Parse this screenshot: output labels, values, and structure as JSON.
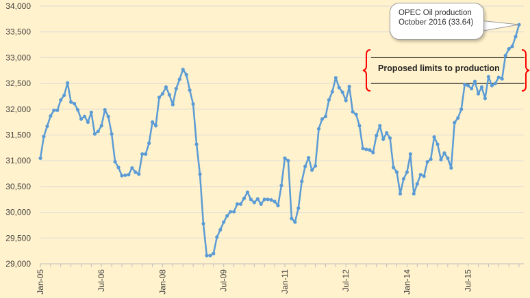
{
  "chart_data": {
    "type": "line",
    "title": "",
    "xlabel": "",
    "ylabel": "",
    "ylim": [
      29000,
      34000
    ],
    "yticks": [
      29000,
      29500,
      30000,
      30500,
      31000,
      31500,
      32000,
      32500,
      33000,
      33500,
      34000
    ],
    "ytick_labels": [
      "29,000",
      "29,500",
      "30,000",
      "30,500",
      "31,000",
      "31,500",
      "32,000",
      "32,500",
      "33,000",
      "33,500",
      "34,000"
    ],
    "grid": true,
    "start": "Jan-05",
    "xtick_labels": [
      {
        "label": "Jan-05",
        "index": 0
      },
      {
        "label": "Jul-06",
        "index": 18
      },
      {
        "label": "Jan-08",
        "index": 36
      },
      {
        "label": "Jul-09",
        "index": 54
      },
      {
        "label": "Jan-11",
        "index": 72
      },
      {
        "label": "Jul-12",
        "index": 90
      },
      {
        "label": "Jan-14",
        "index": 108
      },
      {
        "label": "Jul-15",
        "index": 126
      }
    ],
    "series": [
      {
        "name": "OPEC Oil production",
        "color": "#5B9BD5",
        "values": [
          31050,
          31470,
          31670,
          31870,
          31980,
          31980,
          32180,
          32270,
          32510,
          32140,
          32110,
          31990,
          31810,
          31860,
          31750,
          31940,
          31520,
          31570,
          31680,
          31990,
          31860,
          31520,
          30980,
          30870,
          30710,
          30720,
          30730,
          30860,
          30780,
          30740,
          31130,
          31130,
          31340,
          31750,
          31680,
          32230,
          32300,
          32430,
          32280,
          32090,
          32400,
          32580,
          32770,
          32670,
          32370,
          32100,
          31320,
          30740,
          29780,
          29160,
          29160,
          29200,
          29520,
          29660,
          29810,
          29930,
          30010,
          30010,
          30160,
          30160,
          30270,
          30390,
          30250,
          30190,
          30260,
          30160,
          30250,
          30250,
          30240,
          30210,
          30130,
          30520,
          31050,
          31000,
          29880,
          29810,
          30080,
          30600,
          30890,
          31060,
          30820,
          30900,
          31620,
          31810,
          31860,
          32180,
          32340,
          32610,
          32420,
          32330,
          32170,
          32440,
          31950,
          31900,
          31680,
          31240,
          31220,
          31210,
          31160,
          31490,
          31680,
          31420,
          31540,
          31440,
          30870,
          30780,
          30360,
          30650,
          30780,
          31130,
          30360,
          30550,
          30730,
          30700,
          30980,
          31030,
          31460,
          31320,
          31020,
          31150,
          31050,
          30860,
          31740,
          31830,
          32000,
          32480,
          32460,
          32400,
          32540,
          32300,
          32430,
          32210,
          32630,
          32460,
          32500,
          32620,
          32590,
          33040,
          33170,
          33220,
          33410,
          33640
        ]
      }
    ],
    "annotations": {
      "callout": [
        "OPEC Oil production",
        "October 2016 (33.64)"
      ],
      "limits_label": "Proposed limits to production",
      "limits": [
        32500,
        33000
      ]
    }
  }
}
